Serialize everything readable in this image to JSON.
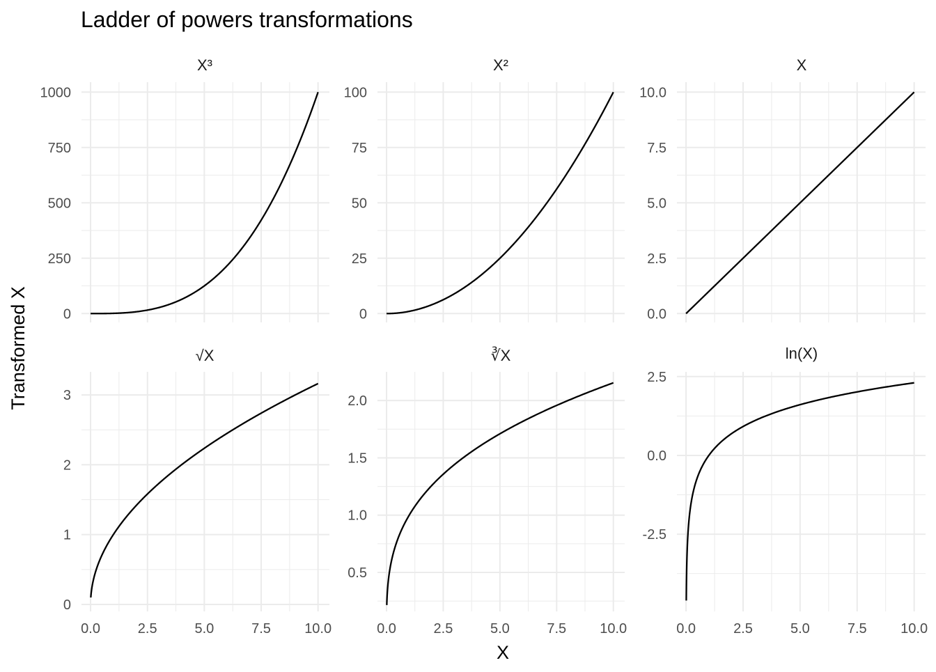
{
  "chart_data": {
    "type": "line",
    "title": "Ladder of powers transformations",
    "xlabel": "X",
    "ylabel": "Transformed X",
    "grid": true,
    "legend": "none",
    "line_color": "#000000",
    "grid_color": "#ebebeb",
    "x_ticks": [
      "0.0",
      "2.5",
      "5.0",
      "7.5",
      "10.0"
    ],
    "x_tick_values": [
      0,
      2.5,
      5,
      7.5,
      10
    ],
    "xlim": [
      -0.4,
      10.5
    ],
    "panels": [
      {
        "id": "cube",
        "strip_label": "X³",
        "function": "cube",
        "x_range": [
          0,
          10
        ],
        "ylim": [
          -40,
          1045
        ],
        "y_ticks": [
          "0",
          "250",
          "500",
          "750",
          "1000"
        ],
        "y_tick_values": [
          0,
          250,
          500,
          750,
          1000
        ],
        "points": [
          [
            0,
            0
          ],
          [
            2.5,
            15.6
          ],
          [
            5,
            125
          ],
          [
            7.5,
            421.9
          ],
          [
            10,
            1000
          ]
        ]
      },
      {
        "id": "square",
        "strip_label": "X²",
        "function": "square",
        "x_range": [
          0,
          10
        ],
        "ylim": [
          -4,
          104.5
        ],
        "y_ticks": [
          "0",
          "25",
          "50",
          "75",
          "100"
        ],
        "y_tick_values": [
          0,
          25,
          50,
          75,
          100
        ],
        "points": [
          [
            0,
            0
          ],
          [
            2.5,
            6.25
          ],
          [
            5,
            25
          ],
          [
            7.5,
            56.25
          ],
          [
            10,
            100
          ]
        ]
      },
      {
        "id": "identity",
        "strip_label": "X",
        "function": "identity",
        "x_range": [
          0,
          10
        ],
        "ylim": [
          -0.4,
          10.45
        ],
        "y_ticks": [
          "0.0",
          "2.5",
          "5.0",
          "7.5",
          "10.0"
        ],
        "y_tick_values": [
          0,
          2.5,
          5,
          7.5,
          10
        ],
        "points": [
          [
            0,
            0
          ],
          [
            2.5,
            2.5
          ],
          [
            5,
            5
          ],
          [
            7.5,
            7.5
          ],
          [
            10,
            10
          ]
        ]
      },
      {
        "id": "sqrt",
        "strip_label": "√X",
        "function": "sqrt",
        "x_range": [
          0.01,
          10
        ],
        "ylim": [
          -0.1,
          3.33
        ],
        "y_ticks": [
          "0",
          "1",
          "2",
          "3"
        ],
        "y_tick_values": [
          0,
          1,
          2,
          3
        ],
        "points": [
          [
            0.01,
            0.1
          ],
          [
            2.5,
            1.58
          ],
          [
            5,
            2.24
          ],
          [
            7.5,
            2.74
          ],
          [
            10,
            3.16
          ]
        ]
      },
      {
        "id": "cbrt",
        "strip_label": "∛X",
        "function": "cbrt",
        "x_range": [
          0.01,
          10
        ],
        "ylim": [
          0.16,
          2.25
        ],
        "y_ticks": [
          "0.5",
          "1.0",
          "1.5",
          "2.0"
        ],
        "y_tick_values": [
          0.5,
          1,
          1.5,
          2
        ],
        "points": [
          [
            0.01,
            0.22
          ],
          [
            2.5,
            1.36
          ],
          [
            5,
            1.71
          ],
          [
            7.5,
            1.96
          ],
          [
            10,
            2.15
          ]
        ]
      },
      {
        "id": "log",
        "strip_label": "ln(X)",
        "function": "log",
        "x_range": [
          0.01,
          10
        ],
        "ylim": [
          -4.95,
          2.65
        ],
        "y_ticks": [
          "-2.5",
          "0.0",
          "2.5"
        ],
        "y_tick_values": [
          -2.5,
          0,
          2.5
        ],
        "points": [
          [
            0.01,
            -4.61
          ],
          [
            2.5,
            0.92
          ],
          [
            5,
            1.61
          ],
          [
            7.5,
            2.01
          ],
          [
            10,
            2.3
          ]
        ]
      }
    ]
  }
}
